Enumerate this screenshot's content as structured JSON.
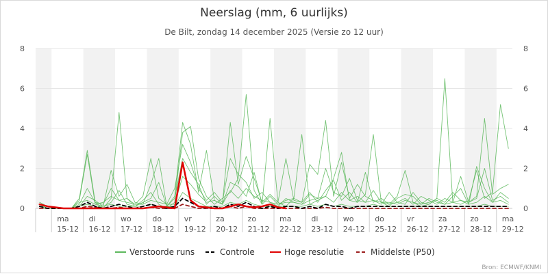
{
  "chart_data": {
    "type": "line",
    "title": "Neerslag (mm, 6 uurlijks)",
    "subtitle": "De Bilt, zondag 14 december 2025 (Versie zo 12 uur)",
    "xlabel": "",
    "ylabel": "",
    "ylim": [
      0,
      8
    ],
    "yticks": [
      "0",
      "2",
      "4",
      "6",
      "8"
    ],
    "grid": true,
    "legend_position": "bottom-center",
    "source": "Bron: ECMWF/KNMI",
    "x_start": "2025-12-14 12:00",
    "x_step_hours": 6,
    "days": [
      {
        "day": "ma",
        "date": "15-12"
      },
      {
        "day": "di",
        "date": "16-12"
      },
      {
        "day": "wo",
        "date": "17-12"
      },
      {
        "day": "do",
        "date": "18-12"
      },
      {
        "day": "vr",
        "date": "19-12"
      },
      {
        "day": "za",
        "date": "20-12"
      },
      {
        "day": "zo",
        "date": "21-12"
      },
      {
        "day": "ma",
        "date": "22-12"
      },
      {
        "day": "di",
        "date": "23-12"
      },
      {
        "day": "wo",
        "date": "24-12"
      },
      {
        "day": "do",
        "date": "25-12"
      },
      {
        "day": "vr",
        "date": "26-12"
      },
      {
        "day": "za",
        "date": "27-12"
      },
      {
        "day": "zo",
        "date": "28-12"
      },
      {
        "day": "ma",
        "date": "29-12"
      }
    ],
    "legend": [
      {
        "key": "perturbed",
        "label": "Verstoorde runs",
        "color": "#5cb85c",
        "style": "solid"
      },
      {
        "key": "control",
        "label": "Controle",
        "color": "#000000",
        "style": "dashed"
      },
      {
        "key": "hires",
        "label": "Hoge resolutie",
        "color": "#e00000",
        "style": "solid"
      },
      {
        "key": "median",
        "label": "Middelste (P50)",
        "color": "#9b1c1c",
        "style": "dashed"
      }
    ],
    "series": [
      {
        "name": "Verstoorde runs",
        "kind": "perturbed",
        "values": [
          0.3,
          0.1,
          0,
          0,
          0,
          0.5,
          2.9,
          0.3,
          0,
          0.5,
          4.8,
          0.5,
          0.1,
          0.4,
          0.8,
          0.2,
          0,
          0.3,
          3.8,
          4.1,
          1.5,
          0.6,
          0.2,
          0.5,
          0.8,
          1.5,
          5.7,
          0.9,
          0.2,
          4.5,
          0.3,
          0.1,
          0.5,
          3.7,
          0.2,
          0.4,
          0.6,
          1.5,
          2.8,
          0.4,
          0.3,
          0.7,
          3.7,
          0.3,
          0.2,
          0.6,
          1.9,
          0.3,
          0.1,
          0.2,
          0.5,
          6.5,
          0.3,
          0.2,
          0.4,
          1.9,
          0.5,
          0.8,
          5.2,
          3.0
        ]
      },
      {
        "name": "Verstoorde runs",
        "kind": "perturbed",
        "values": [
          0.2,
          0,
          0,
          0,
          0,
          0.4,
          2.7,
          0.2,
          0.1,
          1.9,
          0.6,
          1.2,
          0.3,
          0.2,
          1.2,
          2.5,
          0.1,
          0.6,
          4.3,
          3.2,
          0.8,
          2.9,
          0.4,
          0.2,
          4.3,
          1.2,
          2.6,
          1.5,
          0.3,
          0.7,
          0.3,
          2.5,
          0.4,
          0.3,
          2.2,
          1.7,
          4.4,
          0.6,
          2.3,
          0.5,
          1.2,
          0.6,
          0.4,
          0.2,
          0.8,
          0.3,
          0.5,
          0.2,
          0.6,
          0.4,
          0.2,
          0.5,
          0.3,
          1.6,
          0.3,
          0.6,
          4.5,
          0.7,
          1.0,
          1.2
        ]
      },
      {
        "name": "Verstoorde runs",
        "kind": "perturbed",
        "values": [
          0.1,
          0.1,
          0,
          0,
          0,
          0.2,
          1.0,
          0.3,
          0.2,
          1.0,
          0.4,
          0.5,
          0.2,
          0.6,
          2.5,
          0.5,
          0.2,
          1.0,
          3.2,
          2.3,
          1.0,
          0.4,
          0.8,
          0.3,
          2.5,
          1.7,
          1.3,
          0.5,
          0.8,
          0.3,
          0.1,
          0.5,
          0.3,
          0.2,
          0.7,
          0.5,
          2.0,
          0.8,
          0.6,
          1.5,
          0.4,
          0.3,
          0.9,
          0.3,
          0.1,
          0.5,
          0.7,
          0.6,
          0.2,
          0.3,
          0.4,
          0.2,
          0.6,
          1.0,
          0.2,
          2.1,
          1.0,
          0.3,
          0.8,
          0.5
        ]
      },
      {
        "name": "Verstoorde runs",
        "kind": "perturbed",
        "values": [
          0.1,
          0,
          0,
          0,
          0,
          0.1,
          0.6,
          0.4,
          0.1,
          0.3,
          0.9,
          0.2,
          0.1,
          0.3,
          0.5,
          1.3,
          0.1,
          0.5,
          2.5,
          1.8,
          1.2,
          0.2,
          0.6,
          0.2,
          1.3,
          1.1,
          0.6,
          1.8,
          0.2,
          0.6,
          0.2,
          0.4,
          0.5,
          0.3,
          0.8,
          0.3,
          0.9,
          1.4,
          0.4,
          0.8,
          0.3,
          1.8,
          0.3,
          0.5,
          0.2,
          0.3,
          0.2,
          0.8,
          0.3,
          0.2,
          0.5,
          0.3,
          0.8,
          0.4,
          0.3,
          0.5,
          2.0,
          0.4,
          0.6,
          0.3
        ]
      },
      {
        "name": "Verstoorde runs",
        "kind": "perturbed",
        "values": [
          0,
          0,
          0,
          0,
          0,
          0.3,
          0.4,
          0.2,
          0.3,
          0.6,
          0.4,
          0.3,
          0.2,
          0.2,
          0.4,
          0.3,
          0.2,
          0.2,
          1.6,
          1.2,
          0.7,
          0.3,
          0.4,
          0.2,
          0.9,
          0.5,
          1.0,
          0.6,
          0.4,
          0.3,
          0.2,
          0.3,
          0.3,
          0.2,
          0.4,
          0.5,
          0.6,
          0.3,
          0.8,
          0.4,
          0.6,
          0.3,
          0.4,
          0.3,
          0.3,
          0.2,
          0.4,
          0.3,
          0.2,
          0.5,
          0.3,
          0.2,
          0.3,
          0.4,
          0.2,
          0.3,
          0.6,
          0.3,
          0.4,
          0.2
        ]
      },
      {
        "name": "Verstoorde runs",
        "kind": "perturbed",
        "values": [
          0,
          0,
          0,
          0,
          0,
          0.1,
          0.2,
          0.1,
          0.1,
          0.2,
          0.1,
          0.1,
          0.1,
          0.1,
          0.2,
          0.1,
          0.1,
          0.1,
          0.8,
          0.5,
          0.3,
          0.1,
          0.1,
          0.1,
          0.3,
          0.2,
          0.4,
          0.2,
          0.1,
          0.1,
          0.1,
          0.1,
          0.1,
          0.1,
          0.2,
          0.1,
          0.2,
          0.1,
          0.2,
          0.1,
          0.1,
          0.1,
          0.2,
          0.1,
          0.1,
          0.1,
          0.1,
          0.1,
          0.1,
          0.1,
          0.1,
          0.1,
          0.1,
          0.1,
          0.1,
          0.1,
          0.2,
          0.1,
          0.1,
          0.1
        ]
      },
      {
        "name": "Controle",
        "kind": "control",
        "values": [
          0.1,
          0,
          0,
          0,
          0,
          0.1,
          0.3,
          0.1,
          0,
          0.1,
          0.2,
          0.1,
          0,
          0.1,
          0.2,
          0.1,
          0,
          0.1,
          0.5,
          0.3,
          0.1,
          0,
          0.1,
          0,
          0.2,
          0.1,
          0.3,
          0.1,
          0,
          0.1,
          0,
          0.1,
          0.1,
          0,
          0.1,
          0,
          0.2,
          0.1,
          0.1,
          0,
          0.1,
          0.1,
          0.1,
          0.1,
          0.1,
          0.1,
          0.1,
          0.1,
          0.1,
          0.1,
          0.1,
          0.1,
          0.1,
          0.1,
          0.1,
          0.1,
          0.1,
          0.1,
          0.1,
          0.1
        ]
      },
      {
        "name": "Hoge resolutie",
        "kind": "hires",
        "values": [
          0.2,
          0.1,
          0.05,
          0,
          0,
          0,
          0,
          0,
          0,
          0,
          0,
          0,
          0,
          0,
          0.05,
          0.1,
          0.05,
          0,
          2.3,
          0.4,
          0.1,
          0.05,
          0,
          0,
          0.1,
          0.2,
          0.1,
          0.05,
          0.1,
          0.2,
          0.05,
          0
        ]
      },
      {
        "name": "Middelste (P50)",
        "kind": "median",
        "values": [
          0,
          0,
          0,
          0,
          0,
          0,
          0.1,
          0.05,
          0,
          0,
          0.05,
          0,
          0,
          0,
          0.05,
          0,
          0,
          0,
          0.2,
          0.1,
          0,
          0,
          0,
          0,
          0.1,
          0,
          0.1,
          0,
          0,
          0,
          0,
          0,
          0,
          0,
          0,
          0,
          0.05,
          0,
          0,
          0,
          0,
          0,
          0,
          0,
          0,
          0,
          0,
          0,
          0,
          0,
          0,
          0,
          0,
          0,
          0,
          0,
          0,
          0,
          0,
          0
        ]
      }
    ]
  }
}
